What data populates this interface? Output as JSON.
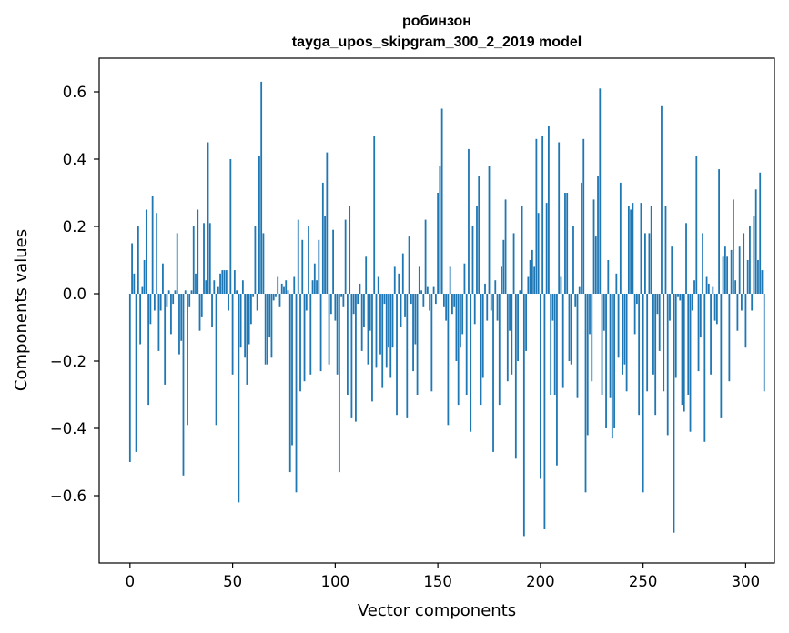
{
  "chart_data": {
    "type": "bar",
    "title": "робинзон",
    "subtitle": "tayga_upos_skipgram_300_2_2019 model",
    "xlabel": "Vector components",
    "ylabel": "Components values",
    "xlim": [
      -15,
      314
    ],
    "ylim": [
      -0.8,
      0.7
    ],
    "xticks": [
      0,
      50,
      100,
      150,
      200,
      250,
      300
    ],
    "xtick_labels": [
      "0",
      "50",
      "100",
      "150",
      "200",
      "250",
      "300"
    ],
    "yticks": [
      -0.6,
      -0.4,
      -0.2,
      0.0,
      0.2,
      0.4,
      0.6
    ],
    "ytick_labels": [
      "−0.6",
      "−0.4",
      "−0.2",
      "0.0",
      "0.2",
      "0.4",
      "0.6"
    ],
    "grid": false,
    "bar_color": "#1f77b4",
    "x_start": 0,
    "values": [
      -0.5,
      0.15,
      0.06,
      -0.47,
      0.2,
      -0.15,
      0.02,
      0.1,
      0.25,
      -0.33,
      -0.09,
      0.29,
      -0.05,
      0.24,
      -0.17,
      -0.05,
      0.09,
      -0.27,
      -0.04,
      0.01,
      -0.12,
      -0.03,
      0.01,
      0.18,
      -0.18,
      -0.14,
      -0.54,
      0.01,
      -0.39,
      -0.04,
      0.01,
      0.2,
      0.06,
      0.25,
      -0.11,
      -0.07,
      0.21,
      0.04,
      0.45,
      0.21,
      -0.1,
      0.04,
      -0.39,
      0.02,
      0.06,
      0.07,
      0.07,
      0.07,
      -0.05,
      0.4,
      -0.24,
      0.07,
      0.01,
      -0.62,
      -0.16,
      0.04,
      -0.19,
      -0.27,
      -0.15,
      -0.09,
      -0.01,
      0.2,
      -0.05,
      0.41,
      0.63,
      0.18,
      -0.21,
      -0.21,
      -0.13,
      -0.19,
      -0.02,
      -0.01,
      0.05,
      -0.04,
      0.03,
      0.02,
      0.04,
      0.01,
      -0.53,
      -0.45,
      0.05,
      -0.59,
      0.22,
      -0.29,
      0.16,
      -0.26,
      -0.05,
      0.2,
      -0.24,
      0.04,
      0.09,
      0.04,
      0.16,
      -0.23,
      0.33,
      0.23,
      0.42,
      -0.21,
      -0.06,
      0.19,
      -0.08,
      -0.24,
      -0.53,
      -0.01,
      -0.04,
      0.22,
      -0.3,
      0.26,
      -0.37,
      -0.06,
      -0.38,
      -0.03,
      0.03,
      -0.17,
      -0.1,
      0.11,
      -0.21,
      -0.11,
      -0.32,
      0.47,
      -0.22,
      0.05,
      -0.18,
      -0.28,
      -0.03,
      -0.22,
      -0.16,
      -0.25,
      -0.16,
      0.08,
      -0.36,
      0.06,
      -0.1,
      0.12,
      -0.07,
      -0.37,
      0.17,
      -0.03,
      -0.23,
      -0.15,
      -0.3,
      0.08,
      0.01,
      -0.04,
      0.22,
      0.02,
      -0.05,
      -0.29,
      0.02,
      -0.03,
      0.3,
      0.38,
      0.55,
      -0.04,
      -0.08,
      -0.39,
      0.08,
      -0.06,
      -0.04,
      -0.2,
      -0.33,
      -0.16,
      -0.12,
      0.09,
      -0.3,
      0.43,
      -0.41,
      0.2,
      -0.09,
      0.26,
      0.35,
      -0.33,
      -0.25,
      0.03,
      -0.08,
      0.38,
      -0.05,
      -0.47,
      0.04,
      -0.08,
      -0.33,
      0.08,
      0.16,
      0.28,
      -0.26,
      -0.11,
      -0.24,
      0.18,
      -0.49,
      -0.2,
      0.01,
      0.26,
      -0.72,
      -0.17,
      0.05,
      0.1,
      0.13,
      0.08,
      0.46,
      0.24,
      -0.55,
      0.47,
      -0.7,
      0.27,
      0.5,
      -0.3,
      -0.08,
      -0.3,
      -0.51,
      0.45,
      0.05,
      -0.28,
      0.3,
      0.3,
      -0.2,
      -0.21,
      0.2,
      -0.04,
      -0.31,
      0.02,
      0.33,
      0.46,
      -0.59,
      -0.42,
      -0.12,
      -0.26,
      0.28,
      0.17,
      0.35,
      0.61,
      -0.3,
      -0.11,
      -0.4,
      0.1,
      -0.31,
      -0.43,
      -0.4,
      0.06,
      -0.19,
      0.33,
      -0.24,
      -0.21,
      -0.29,
      0.26,
      0.25,
      0.27,
      -0.12,
      -0.03,
      -0.36,
      0.27,
      -0.59,
      0.18,
      -0.29,
      0.18,
      0.26,
      -0.24,
      -0.36,
      -0.06,
      -0.17,
      0.56,
      -0.29,
      0.26,
      -0.42,
      -0.08,
      0.14,
      -0.71,
      -0.25,
      -0.01,
      -0.02,
      -0.33,
      -0.35,
      0.21,
      -0.3,
      -0.41,
      -0.05,
      0.04,
      0.41,
      -0.23,
      -0.13,
      0.18,
      -0.44,
      0.05,
      0.03,
      -0.24,
      0.02,
      -0.08,
      -0.09,
      0.37,
      -0.37,
      0.11,
      0.14,
      0.11,
      -0.26,
      0.13,
      0.28,
      0.04,
      -0.11,
      0.14,
      -0.05,
      0.18,
      -0.16,
      0.1,
      0.2,
      -0.05,
      0.23,
      0.31,
      0.1,
      0.36,
      0.07,
      -0.29
    ]
  }
}
